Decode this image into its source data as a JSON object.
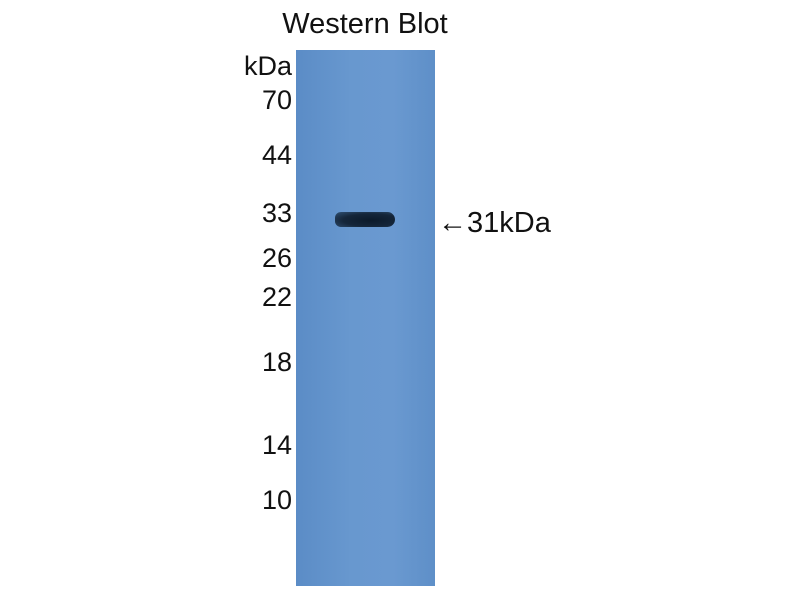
{
  "title": "Western Blot",
  "unit_label": "kDa",
  "markers": [
    "70",
    "44",
    "33",
    "26",
    "22",
    "18",
    "14",
    "10"
  ],
  "band_annotation": "←31kDa",
  "colors": {
    "membrane": "#6898cf",
    "band": "#0c1a2a"
  }
}
